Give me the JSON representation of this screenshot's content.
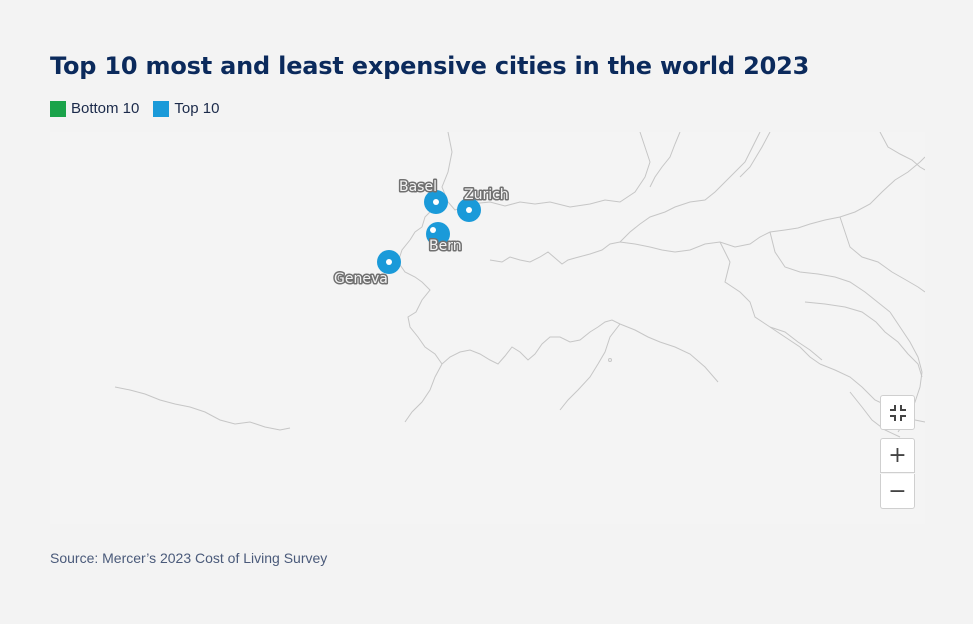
{
  "title": "Top 10 most and least expensive cities in the world 2023",
  "legend": [
    {
      "label": "Bottom 10",
      "color": "#1aa34a"
    },
    {
      "label": "Top 10",
      "color": "#1a9ad9"
    }
  ],
  "cities": [
    {
      "name": "Basel",
      "group": "Top 10"
    },
    {
      "name": "Zurich",
      "group": "Top 10"
    },
    {
      "name": "Bern",
      "group": "Top 10"
    },
    {
      "name": "Geneva",
      "group": "Top 10"
    }
  ],
  "controls": {
    "fit_icon": "fit-to-view-icon",
    "zoom_in": "+",
    "zoom_out": "−"
  },
  "source": "Source: Mercer’s 2023 Cost of Living Survey"
}
